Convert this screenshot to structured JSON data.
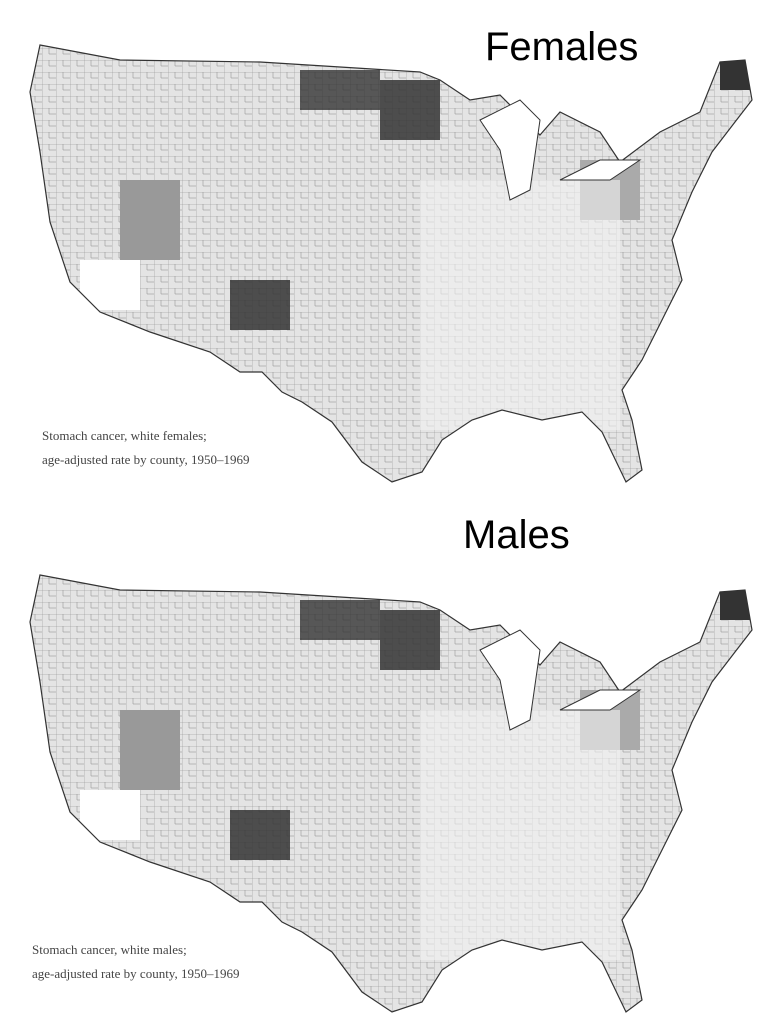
{
  "maps": [
    {
      "title": "Females",
      "caption": [
        "Stomach cancer, white females;",
        "age-adjusted rate by county, 1950–1969"
      ]
    },
    {
      "title": "Males",
      "caption": [
        "Stomach cancer, white males;",
        "age-adjusted rate by county, 1950–1969"
      ]
    }
  ]
}
